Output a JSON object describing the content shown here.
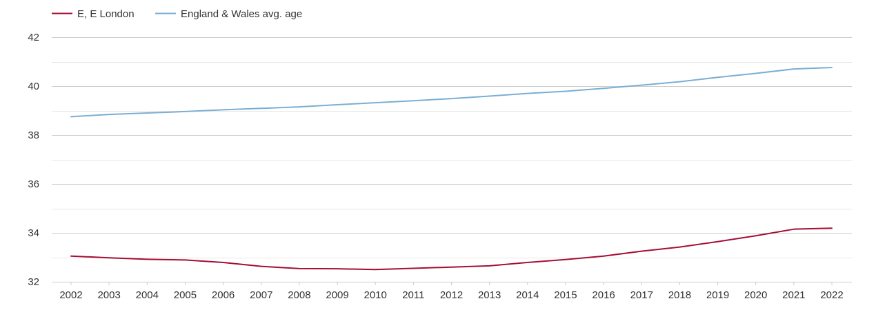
{
  "chart_data": {
    "type": "line",
    "title": "",
    "xlabel": "",
    "ylabel": "",
    "x": [
      "2002",
      "2003",
      "2004",
      "2005",
      "2006",
      "2007",
      "2008",
      "2009",
      "2010",
      "2011",
      "2012",
      "2013",
      "2014",
      "2015",
      "2016",
      "2017",
      "2018",
      "2019",
      "2020",
      "2021",
      "2022"
    ],
    "ylim": [
      32,
      42
    ],
    "yticks": [
      "32",
      "34",
      "36",
      "38",
      "40",
      "42"
    ],
    "grid": true,
    "legend_position": "top-left",
    "series": [
      {
        "name": "E, E London",
        "color": "#a50d36",
        "values": [
          33.05,
          32.98,
          32.92,
          32.89,
          32.79,
          32.63,
          32.54,
          32.53,
          32.5,
          32.55,
          32.6,
          32.65,
          32.79,
          32.91,
          33.05,
          33.25,
          33.42,
          33.64,
          33.88,
          34.15,
          34.19
        ]
      },
      {
        "name": "England & Wales avg. age",
        "color": "#7aaed4",
        "values": [
          38.75,
          38.84,
          38.9,
          38.96,
          39.03,
          39.09,
          39.15,
          39.24,
          39.32,
          39.4,
          39.49,
          39.59,
          39.7,
          39.79,
          39.91,
          40.04,
          40.18,
          40.36,
          40.52,
          40.7,
          40.76
        ]
      }
    ]
  }
}
